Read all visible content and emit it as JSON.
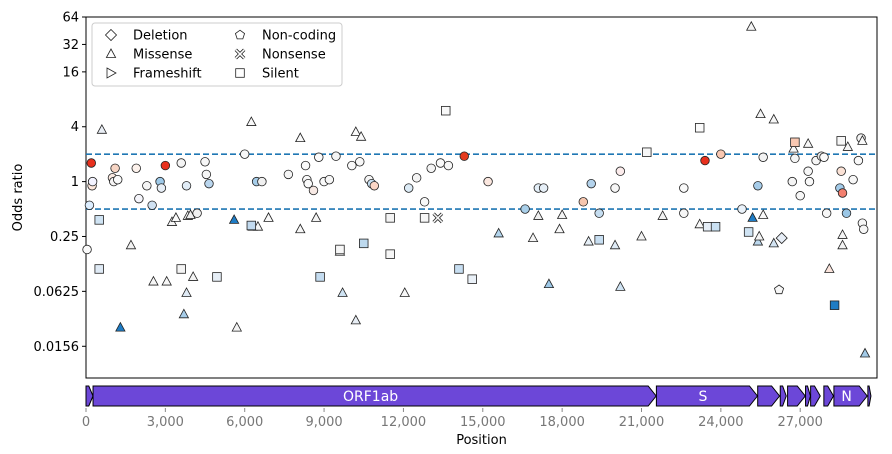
{
  "chart_data": {
    "type": "scatter",
    "xlabel": "Position",
    "ylabel": "Odds ratio",
    "x_ticks": [
      0,
      3000,
      6000,
      9000,
      12000,
      15000,
      18000,
      21000,
      24000,
      27000
    ],
    "x_tick_labels": [
      "0",
      "3,000",
      "6,000",
      "9,000",
      "12,000",
      "15,000",
      "18,000",
      "21,000",
      "24,000",
      "27,000"
    ],
    "xlim": [
      0,
      29903
    ],
    "y_scale": "log2",
    "ylim": [
      0.007,
      64
    ],
    "y_ticks": [
      0.0156,
      0.0625,
      0.25,
      1,
      4,
      16,
      32,
      64
    ],
    "y_tick_labels": [
      "0.0156",
      "0.0625",
      "0.25",
      "1",
      "4",
      "16",
      "32",
      "64"
    ],
    "thresholds": [
      2.0,
      0.5
    ],
    "threshold_color": "#1f77b4",
    "legend": {
      "position": "top-left",
      "entries": [
        {
          "label": "Deletion",
          "marker": "diamond"
        },
        {
          "label": "Missense",
          "marker": "triangle"
        },
        {
          "label": "Frameshift",
          "marker": "triangle-right"
        },
        {
          "label": "Non-coding",
          "marker": "pentagon"
        },
        {
          "label": "Nonsense",
          "marker": "x-cross"
        },
        {
          "label": "Silent",
          "marker": "square"
        }
      ]
    },
    "genes": [
      {
        "label": "",
        "start": 0,
        "end": 265
      },
      {
        "label": "ORF1ab",
        "start": 266,
        "end": 21555
      },
      {
        "label": "S",
        "start": 21563,
        "end": 25384
      },
      {
        "label": "",
        "start": 25393,
        "end": 26220
      },
      {
        "label": "",
        "start": 26245,
        "end": 26472
      },
      {
        "label": "",
        "start": 26523,
        "end": 27191
      },
      {
        "label": "",
        "start": 27202,
        "end": 27387
      },
      {
        "label": "",
        "start": 27394,
        "end": 27759
      },
      {
        "label": "",
        "start": 27894,
        "end": 28259
      },
      {
        "label": "N",
        "start": 28274,
        "end": 29533
      },
      {
        "label": "",
        "start": 29558,
        "end": 29674
      }
    ],
    "gene_color": "#6c47d8",
    "points": [
      [
        130,
        0.55,
        "c",
        "#ddeeff"
      ],
      [
        200,
        1.6,
        "c",
        "#e8301d"
      ],
      [
        230,
        0.9,
        "c",
        "#fde8dc"
      ],
      [
        250,
        1.0,
        "c",
        "#f3f3ff"
      ],
      [
        40,
        0.18,
        "c",
        "#fafafa"
      ],
      [
        1000,
        1.1,
        "c",
        "#fbeae2"
      ],
      [
        1050,
        1.0,
        "c",
        "#f6f4f4"
      ],
      [
        1200,
        1.05,
        "c",
        "#fafafa"
      ],
      [
        1100,
        1.4,
        "c",
        "#f7d5c4"
      ],
      [
        1900,
        1.4,
        "c",
        "#fdf2ec"
      ],
      [
        2000,
        0.65,
        "c",
        "#f5f5fb"
      ],
      [
        2300,
        0.9,
        "c",
        "#f5f5f5"
      ],
      [
        2500,
        0.55,
        "c",
        "#cfe1f2"
      ],
      [
        2800,
        1.0,
        "c",
        "#9ec9e8"
      ],
      [
        2850,
        0.85,
        "c",
        "#e7eef6"
      ],
      [
        3000,
        1.5,
        "c",
        "#e8301d"
      ],
      [
        3600,
        1.6,
        "c",
        "#f4f4f4"
      ],
      [
        3800,
        0.9,
        "c",
        "#e1ecf6"
      ],
      [
        4200,
        0.45,
        "c",
        "#f2f2f2"
      ],
      [
        4500,
        1.65,
        "c",
        "#f6f6f6"
      ],
      [
        4550,
        1.2,
        "c",
        "#f6f6f6"
      ],
      [
        4650,
        0.95,
        "c",
        "#bad6ee"
      ],
      [
        6000,
        2.0,
        "c",
        "#f7f7f7"
      ],
      [
        6450,
        1.0,
        "c",
        "#a6cde9"
      ],
      [
        6650,
        1.0,
        "c",
        "#f0f0f0"
      ],
      [
        7650,
        1.2,
        "c",
        "#f5f5f5"
      ],
      [
        8300,
        1.5,
        "c",
        "#f9f9f9"
      ],
      [
        8350,
        1.05,
        "c",
        "#f9f9f9"
      ],
      [
        8400,
        0.95,
        "c",
        "#fbfbfb"
      ],
      [
        8600,
        0.8,
        "c",
        "#f7e9e4"
      ],
      [
        8800,
        1.85,
        "c",
        "#fbfbfb"
      ],
      [
        9000,
        1.0,
        "c",
        "#fafafa"
      ],
      [
        9200,
        1.05,
        "c",
        "#f7f7f7"
      ],
      [
        9450,
        1.9,
        "c",
        "#f5f5f5"
      ],
      [
        10050,
        1.5,
        "c",
        "#fafafa"
      ],
      [
        10350,
        1.65,
        "c",
        "#f8f8f8"
      ],
      [
        10700,
        1.05,
        "c",
        "#f6f6f6"
      ],
      [
        10800,
        0.95,
        "c",
        "#c7dff1"
      ],
      [
        10900,
        0.9,
        "c",
        "#fbd6c6"
      ],
      [
        12200,
        0.85,
        "c",
        "#dcebf6"
      ],
      [
        12500,
        1.1,
        "c",
        "#f4f4f4"
      ],
      [
        12800,
        0.6,
        "c",
        "#f8f8f8"
      ],
      [
        13050,
        1.4,
        "c",
        "#f4f4f4"
      ],
      [
        13400,
        1.6,
        "c",
        "#fafafa"
      ],
      [
        13700,
        1.5,
        "c",
        "#f7f7f7"
      ],
      [
        14300,
        1.9,
        "c",
        "#e43a1e"
      ],
      [
        15200,
        1.0,
        "c",
        "#fbe7df"
      ],
      [
        16600,
        0.5,
        "c",
        "#a9cfe9"
      ],
      [
        17100,
        0.85,
        "c",
        "#e3eef7"
      ],
      [
        17300,
        0.85,
        "c",
        "#e6eff7"
      ],
      [
        18800,
        0.6,
        "c",
        "#f7c6ae"
      ],
      [
        19100,
        0.95,
        "c",
        "#b4d3ec"
      ],
      [
        19400,
        0.45,
        "c",
        "#c5ddf0"
      ],
      [
        20000,
        0.85,
        "c",
        "#f7f7f7"
      ],
      [
        20200,
        1.3,
        "c",
        "#fcecec"
      ],
      [
        22600,
        0.85,
        "c",
        "#fafafa"
      ],
      [
        22600,
        0.45,
        "c",
        "#f6f6f6"
      ],
      [
        23400,
        1.7,
        "c",
        "#e8301d"
      ],
      [
        24000,
        2.0,
        "c",
        "#f9c8b2"
      ],
      [
        24800,
        0.5,
        "c",
        "#eaf2fa"
      ],
      [
        25400,
        0.9,
        "c",
        "#a6cce9"
      ],
      [
        25600,
        1.85,
        "c",
        "#f3f3f3"
      ],
      [
        26700,
        1.0,
        "c",
        "#f4f4f4"
      ],
      [
        26800,
        1.8,
        "c",
        "#f5f5f5"
      ],
      [
        27000,
        0.7,
        "c",
        "#f7f7f7"
      ],
      [
        27300,
        1.3,
        "c",
        "#f7f7f7"
      ],
      [
        27350,
        1.0,
        "c",
        "#f9f9f9"
      ],
      [
        27600,
        1.7,
        "c",
        "#f6f6f6"
      ],
      [
        27800,
        1.9,
        "c",
        "#e7e7e7"
      ],
      [
        27900,
        1.85,
        "c",
        "#fbfbfb"
      ],
      [
        28000,
        0.45,
        "c",
        "#f7f7f7"
      ],
      [
        28500,
        0.85,
        "c",
        "#a3cbe9"
      ],
      [
        28550,
        1.3,
        "c",
        "#fbe2d6"
      ],
      [
        28600,
        0.75,
        "c",
        "#f3806f"
      ],
      [
        28750,
        0.45,
        "c",
        "#9bc7e6"
      ],
      [
        29000,
        1.05,
        "c",
        "#f7f7f7"
      ],
      [
        29200,
        1.7,
        "c",
        "#f9f9f9"
      ],
      [
        29300,
        3.0,
        "c",
        "#f5f5f5"
      ],
      [
        29350,
        0.35,
        "c",
        "#f6f6f6"
      ],
      [
        29400,
        0.3,
        "c",
        "#f6f6f6"
      ],
      [
        600,
        3.7,
        "t",
        "#e9eef5"
      ],
      [
        1700,
        0.2,
        "t",
        "#f2f2f2"
      ],
      [
        1300,
        0.025,
        "t",
        "#1e7cc5"
      ],
      [
        2550,
        0.08,
        "t",
        "#f6f6f6"
      ],
      [
        3050,
        0.08,
        "t",
        "#f7f7f7"
      ],
      [
        3250,
        0.36,
        "t",
        "#f6f6f6"
      ],
      [
        3400,
        0.4,
        "t",
        "#fafafa"
      ],
      [
        3700,
        0.035,
        "t",
        "#a7cde9"
      ],
      [
        3800,
        0.06,
        "t",
        "#dfeaf5"
      ],
      [
        3850,
        0.42,
        "t",
        "#fafafa"
      ],
      [
        3950,
        0.43,
        "t",
        "#f0f0f0"
      ],
      [
        4050,
        0.09,
        "t",
        "#f4f4f4"
      ],
      [
        5600,
        0.38,
        "t",
        "#1e7cc5"
      ],
      [
        5700,
        0.025,
        "t",
        "#f3f3f3"
      ],
      [
        6250,
        4.5,
        "t",
        "#f8f8f8"
      ],
      [
        6300,
        0.32,
        "t",
        "#f5f5f5"
      ],
      [
        6500,
        0.32,
        "t",
        "#f5f5f5"
      ],
      [
        6900,
        0.4,
        "t",
        "#f8f8f8"
      ],
      [
        8100,
        0.3,
        "t",
        "#f6f6f6"
      ],
      [
        8100,
        3.0,
        "t",
        "#f9f9f9"
      ],
      [
        8700,
        0.4,
        "t",
        "#f3f3f3"
      ],
      [
        9600,
        0.17,
        "t",
        "#f8f8f8"
      ],
      [
        9700,
        0.06,
        "t",
        "#cfe3f3"
      ],
      [
        10200,
        3.5,
        "t",
        "#fafafa"
      ],
      [
        10200,
        0.03,
        "t",
        "#e8eef5"
      ],
      [
        10400,
        3.1,
        "t",
        "#fafafa"
      ],
      [
        12050,
        0.06,
        "t",
        "#f7f7f7"
      ],
      [
        15600,
        0.27,
        "t",
        "#b3d5ed"
      ],
      [
        16900,
        0.24,
        "t",
        "#f4f4f4"
      ],
      [
        17100,
        0.42,
        "t",
        "#eeeeee"
      ],
      [
        17500,
        0.075,
        "t",
        "#9ec9e8"
      ],
      [
        17900,
        0.3,
        "t",
        "#f9f9f9"
      ],
      [
        18000,
        0.43,
        "t",
        "#f4f4f4"
      ],
      [
        19000,
        0.22,
        "t",
        "#e6eff7"
      ],
      [
        20000,
        0.2,
        "t",
        "#dfebf6"
      ],
      [
        20200,
        0.07,
        "t",
        "#cfe3f3"
      ],
      [
        21000,
        0.25,
        "t",
        "#f2f2f2"
      ],
      [
        21800,
        0.42,
        "t",
        "#f2f2f2"
      ],
      [
        23200,
        0.34,
        "t",
        "#f8f8f8"
      ],
      [
        25200,
        0.4,
        "t",
        "#1e7cc5"
      ],
      [
        25400,
        0.22,
        "t",
        "#bcd8ee"
      ],
      [
        25450,
        0.25,
        "t",
        "#f5f5f5"
      ],
      [
        25500,
        5.5,
        "t",
        "#f5f5f5"
      ],
      [
        25600,
        0.43,
        "t",
        "#fafafa"
      ],
      [
        26000,
        4.8,
        "t",
        "#f6f6f6"
      ],
      [
        26000,
        0.21,
        "t",
        "#d3e4f3"
      ],
      [
        26750,
        2.3,
        "t",
        "#f9f9f9"
      ],
      [
        27300,
        2.6,
        "t",
        "#f7f7f7"
      ],
      [
        28100,
        0.11,
        "t",
        "#fbe4dc"
      ],
      [
        28600,
        0.2,
        "t",
        "#f3f3f3"
      ],
      [
        28600,
        0.26,
        "t",
        "#f4f4f4"
      ],
      [
        28800,
        2.4,
        "t",
        "#f5f5f5"
      ],
      [
        29350,
        2.8,
        "t",
        "#f9f9f9"
      ],
      [
        29450,
        0.013,
        "t",
        "#a2cae7"
      ],
      [
        25150,
        50,
        "t",
        "#f5f5f5"
      ],
      [
        26300,
        0.24,
        "d",
        "#e7eef7"
      ],
      [
        26200,
        0.065,
        "p",
        "#f7f7f7"
      ],
      [
        13300,
        0.4,
        "x",
        "#f4f4f4"
      ],
      [
        500,
        0.38,
        "s",
        "#cfe3f3"
      ],
      [
        3600,
        0.11,
        "s",
        "#f4f4f4"
      ],
      [
        500,
        0.11,
        "s",
        "#dfeaf5"
      ],
      [
        4950,
        0.09,
        "s",
        "#e6eef6"
      ],
      [
        6250,
        0.33,
        "s",
        "#c2daef"
      ],
      [
        8850,
        0.09,
        "s",
        "#c4dcf0"
      ],
      [
        9600,
        0.18,
        "s",
        "#f7f7f7"
      ],
      [
        10500,
        0.21,
        "s",
        "#bdd9ee"
      ],
      [
        11500,
        0.4,
        "s",
        "#f3f3f3"
      ],
      [
        11500,
        0.16,
        "s",
        "#f6f6f6"
      ],
      [
        12800,
        0.4,
        "s",
        "#f6f6f6"
      ],
      [
        13600,
        6.0,
        "s",
        "#f8f8f8"
      ],
      [
        14100,
        0.11,
        "s",
        "#c7def1"
      ],
      [
        14600,
        0.085,
        "s",
        "#eaf1f8"
      ],
      [
        19400,
        0.23,
        "s",
        "#c7def1"
      ],
      [
        21200,
        2.1,
        "s",
        "#f7f7f7"
      ],
      [
        23200,
        3.9,
        "s",
        "#fafafa"
      ],
      [
        23500,
        0.32,
        "s",
        "#e5eef7"
      ],
      [
        23800,
        0.32,
        "s",
        "#c9e0f2"
      ],
      [
        25050,
        0.28,
        "s",
        "#cfe3f3"
      ],
      [
        26800,
        2.7,
        "s",
        "#f9c8b2"
      ],
      [
        28300,
        0.044,
        "s",
        "#1e7cc5"
      ],
      [
        28550,
        2.8,
        "s",
        "#f7f7f7"
      ]
    ]
  }
}
